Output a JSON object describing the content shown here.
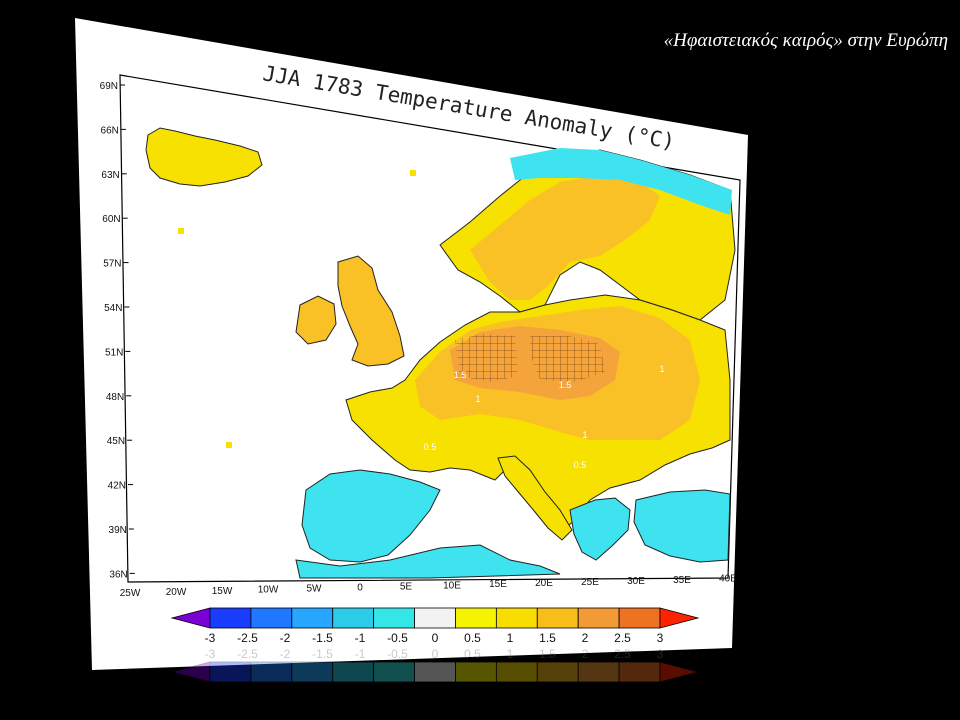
{
  "slide_title": "«Ηφαιστειακός καιρός» στην Ευρώπη",
  "map": {
    "title": "JJA 1783 Temperature Anomaly (°C)",
    "lat_labels": [
      "69N",
      "66N",
      "63N",
      "60N",
      "57N",
      "54N",
      "51N",
      "48N",
      "45N",
      "42N",
      "39N",
      "36N"
    ],
    "lon_labels": [
      "25W",
      "20W",
      "15W",
      "10W",
      "5W",
      "0",
      "5E",
      "10E",
      "15E",
      "20E",
      "25E",
      "30E",
      "35E",
      "40E"
    ],
    "contour_labels": [
      "1.5",
      "1.5",
      "1",
      "1",
      "0.5",
      "0.5",
      "1"
    ]
  },
  "colorbar": {
    "ticks": [
      "-3",
      "-2.5",
      "-2",
      "-1.5",
      "-1",
      "-0.5",
      "0",
      "0.5",
      "1",
      "1.5",
      "2",
      "2.5",
      "3"
    ],
    "colors": [
      "#7b00d6",
      "#1a3cff",
      "#1f78ff",
      "#27a6ff",
      "#2ccbe8",
      "#34e6e6",
      "#f2f2f2",
      "#f6f300",
      "#f8dd00",
      "#f7be19",
      "#f29a35",
      "#ed7322",
      "#ff2400"
    ]
  },
  "colors": {
    "sea": "#ffffff",
    "land_warm": "#f6e100",
    "land_warmer": "#f9c126",
    "land_hot": "#f4a43a",
    "land_cool": "#3fe3f0",
    "background": "#000000"
  }
}
